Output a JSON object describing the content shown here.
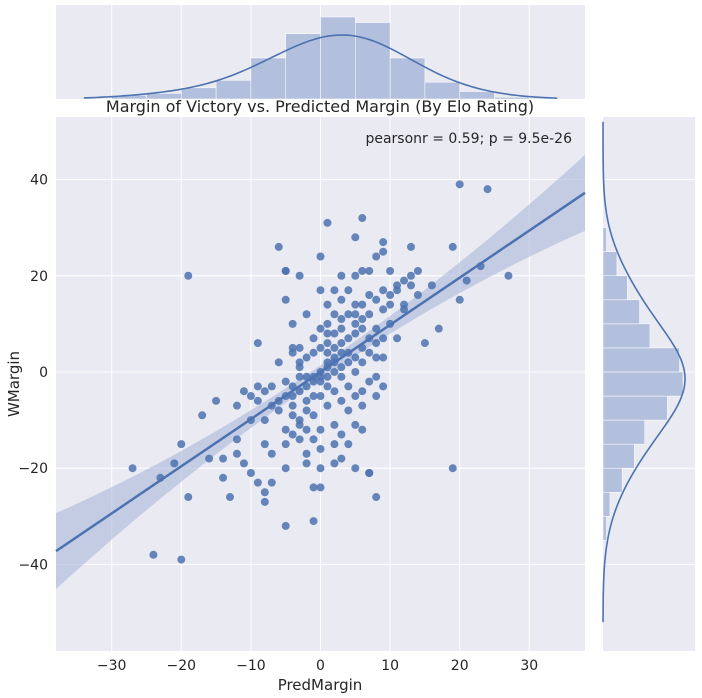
{
  "chart_data": {
    "type": "scatter",
    "title": "Margin of Victory vs. Predicted Margin (By Elo Rating)",
    "xlabel": "PredMargin",
    "ylabel": "WMargin",
    "annotation": "pearsonr = 0.59; p = 9.5e-26",
    "xlim": [
      -38,
      38
    ],
    "ylim": [
      -58,
      53
    ],
    "xticks": [
      -30,
      -20,
      -10,
      0,
      10,
      20,
      30
    ],
    "yticks": [
      -40,
      -20,
      0,
      20,
      40
    ],
    "grid": true,
    "colors": {
      "points": "#4c72b0",
      "band": "#a9b8d9",
      "background": "#eaeaf2",
      "grid": "#ffffff"
    },
    "regression": {
      "slope": 0.98,
      "intercept": 0.0
    },
    "points": [
      [
        -24,
        -38
      ],
      [
        -20,
        -39
      ],
      [
        -27,
        -20
      ],
      [
        -23,
        -22
      ],
      [
        -21,
        -19
      ],
      [
        -20,
        -15
      ],
      [
        -19,
        20
      ],
      [
        -19,
        -26
      ],
      [
        -17,
        -9
      ],
      [
        -16,
        -18
      ],
      [
        -15,
        -6
      ],
      [
        -14,
        -18
      ],
      [
        -14,
        -22
      ],
      [
        -13,
        -26
      ],
      [
        -12,
        -7
      ],
      [
        -12,
        -14
      ],
      [
        -12,
        -17
      ],
      [
        -11,
        -19
      ],
      [
        -11,
        -4
      ],
      [
        -10,
        -5
      ],
      [
        -10,
        -10
      ],
      [
        -10,
        -21
      ],
      [
        -9,
        -23
      ],
      [
        -9,
        6
      ],
      [
        -9,
        -6
      ],
      [
        -9,
        -3
      ],
      [
        -8,
        -4
      ],
      [
        -8,
        -27
      ],
      [
        -8,
        -25
      ],
      [
        -8,
        -10
      ],
      [
        -8,
        -15
      ],
      [
        -7,
        -3
      ],
      [
        -7,
        -7
      ],
      [
        -7,
        -17
      ],
      [
        -7,
        -23
      ],
      [
        -6,
        26
      ],
      [
        -6,
        -6
      ],
      [
        -6,
        -8
      ],
      [
        -6,
        2
      ],
      [
        -5,
        15
      ],
      [
        -5,
        21
      ],
      [
        -5,
        21
      ],
      [
        -5,
        -2
      ],
      [
        -5,
        -5
      ],
      [
        -5,
        -12
      ],
      [
        -5,
        -15
      ],
      [
        -5,
        -20
      ],
      [
        -5,
        -32
      ],
      [
        -4,
        -3
      ],
      [
        -4,
        -5
      ],
      [
        -4,
        -7
      ],
      [
        -4,
        4
      ],
      [
        -4,
        5
      ],
      [
        -4,
        -9
      ],
      [
        -4,
        -13
      ],
      [
        -4,
        10
      ],
      [
        -3,
        -10
      ],
      [
        -3,
        -11
      ],
      [
        -3,
        -14
      ],
      [
        -3,
        5
      ],
      [
        -3,
        1
      ],
      [
        -3,
        2
      ],
      [
        -3,
        -1
      ],
      [
        -3,
        -4
      ],
      [
        -3,
        20
      ],
      [
        -2,
        -1
      ],
      [
        -2,
        -3
      ],
      [
        -2,
        -6
      ],
      [
        -2,
        3
      ],
      [
        -2,
        -8
      ],
      [
        -2,
        -12
      ],
      [
        -2,
        -17
      ],
      [
        -2,
        -19
      ],
      [
        -2,
        12
      ],
      [
        -1,
        -1
      ],
      [
        -1,
        -2
      ],
      [
        -1,
        -5
      ],
      [
        -1,
        4
      ],
      [
        -1,
        -9
      ],
      [
        -1,
        -14
      ],
      [
        -1,
        -24
      ],
      [
        -1,
        -31
      ],
      [
        -1,
        7
      ],
      [
        0,
        0
      ],
      [
        0,
        -1
      ],
      [
        0,
        -2
      ],
      [
        0,
        5
      ],
      [
        0,
        -5
      ],
      [
        0,
        9
      ],
      [
        0,
        -12
      ],
      [
        0,
        -16
      ],
      [
        0,
        -20
      ],
      [
        0,
        -24
      ],
      [
        0,
        17
      ],
      [
        0,
        24
      ],
      [
        1,
        1
      ],
      [
        1,
        2
      ],
      [
        1,
        -1
      ],
      [
        1,
        -3
      ],
      [
        1,
        4
      ],
      [
        1,
        6
      ],
      [
        1,
        8
      ],
      [
        1,
        -7
      ],
      [
        1,
        10
      ],
      [
        1,
        14
      ],
      [
        1,
        31
      ],
      [
        2,
        2
      ],
      [
        2,
        3
      ],
      [
        2,
        -4
      ],
      [
        2,
        5
      ],
      [
        2,
        8
      ],
      [
        2,
        -11
      ],
      [
        2,
        12
      ],
      [
        2,
        -15
      ],
      [
        2,
        17
      ],
      [
        2,
        -19
      ],
      [
        2,
        0
      ],
      [
        3,
        1
      ],
      [
        3,
        -1
      ],
      [
        3,
        4
      ],
      [
        3,
        6
      ],
      [
        3,
        -6
      ],
      [
        3,
        9
      ],
      [
        3,
        11
      ],
      [
        3,
        -13
      ],
      [
        3,
        15
      ],
      [
        3,
        20
      ],
      [
        3,
        -18
      ],
      [
        4,
        2
      ],
      [
        4,
        4
      ],
      [
        4,
        7
      ],
      [
        4,
        -8
      ],
      [
        4,
        12
      ],
      [
        4,
        -3
      ],
      [
        4,
        -15
      ],
      [
        4,
        17
      ],
      [
        5,
        0
      ],
      [
        5,
        3
      ],
      [
        5,
        -5
      ],
      [
        5,
        8
      ],
      [
        5,
        10
      ],
      [
        5,
        12
      ],
      [
        5,
        -11
      ],
      [
        5,
        14
      ],
      [
        5,
        20
      ],
      [
        5,
        -20
      ],
      [
        5,
        28
      ],
      [
        6,
        2
      ],
      [
        6,
        5
      ],
      [
        6,
        -4
      ],
      [
        6,
        9
      ],
      [
        6,
        11
      ],
      [
        6,
        14
      ],
      [
        6,
        -7
      ],
      [
        6,
        -12
      ],
      [
        6,
        21
      ],
      [
        6,
        32
      ],
      [
        7,
        4
      ],
      [
        7,
        -2
      ],
      [
        7,
        7
      ],
      [
        7,
        12
      ],
      [
        7,
        16
      ],
      [
        7,
        -21
      ],
      [
        7,
        -21
      ],
      [
        7,
        21
      ],
      [
        8,
        3
      ],
      [
        8,
        6
      ],
      [
        8,
        -1
      ],
      [
        8,
        9
      ],
      [
        8,
        15
      ],
      [
        8,
        -5
      ],
      [
        8,
        -26
      ],
      [
        8,
        24
      ],
      [
        9,
        7
      ],
      [
        9,
        3
      ],
      [
        9,
        13
      ],
      [
        9,
        -3
      ],
      [
        9,
        17
      ],
      [
        9,
        27
      ],
      [
        9,
        25
      ],
      [
        10,
        10
      ],
      [
        10,
        16
      ],
      [
        10,
        21
      ],
      [
        10,
        14
      ],
      [
        11,
        18
      ],
      [
        11,
        17
      ],
      [
        11,
        7
      ],
      [
        12,
        13
      ],
      [
        12,
        19
      ],
      [
        12,
        14
      ],
      [
        13,
        20
      ],
      [
        13,
        18
      ],
      [
        13,
        26
      ],
      [
        14,
        16
      ],
      [
        14,
        21
      ],
      [
        15,
        6
      ],
      [
        16,
        18
      ],
      [
        17,
        9
      ],
      [
        19,
        26
      ],
      [
        19,
        -20
      ],
      [
        20,
        39
      ],
      [
        20,
        15
      ],
      [
        21,
        19
      ],
      [
        23,
        22
      ],
      [
        24,
        38
      ],
      [
        27,
        20
      ]
    ],
    "x_marginal": {
      "type": "histogram",
      "bins": [
        -30,
        -25,
        -20,
        -15,
        -10,
        -5,
        0,
        5,
        10,
        15,
        20,
        25,
        30
      ],
      "counts": [
        2,
        3,
        6,
        10,
        22,
        35,
        44,
        41,
        22,
        9,
        4,
        1
      ]
    },
    "y_marginal": {
      "type": "histogram",
      "bins": [
        -35,
        -30,
        -25,
        -20,
        -15,
        -10,
        -5,
        0,
        5,
        10,
        15,
        20,
        25,
        30
      ],
      "counts": [
        2,
        4,
        11,
        18,
        24,
        37,
        46,
        44,
        27,
        21,
        14,
        8,
        2
      ]
    }
  }
}
